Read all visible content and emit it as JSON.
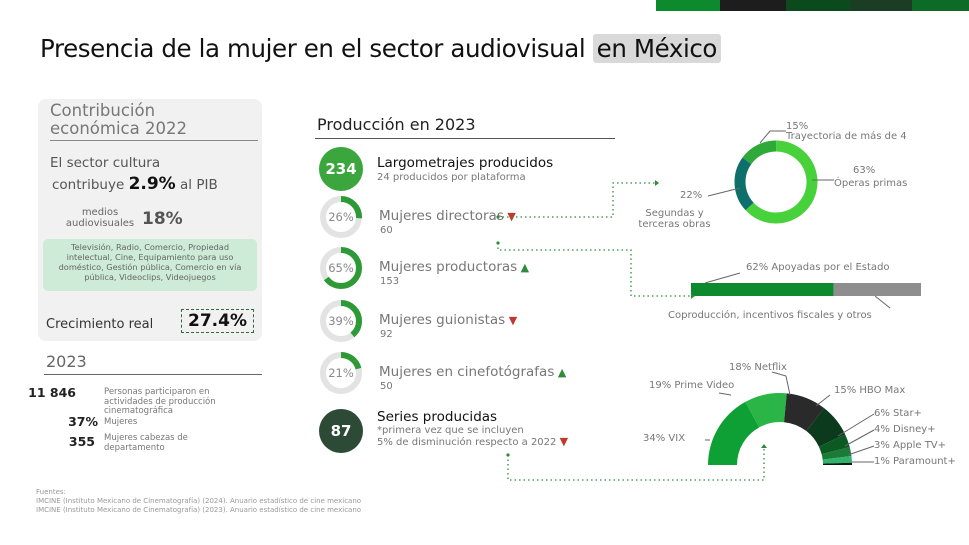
{
  "page": {
    "title_main": "Presencia de la mujer en el sector audiovisual ",
    "title_hl": "en México"
  },
  "topbar_colors": [
    "#0e8a2e",
    "#1d1d1d",
    "#0b4a1c",
    "#1a3d24",
    "#0d6b28"
  ],
  "left": {
    "card_title": "Contribución económica 2022",
    "culture_line1": "El sector cultura",
    "culture_line2_pre": "contribuye",
    "culture_value": "2.9%",
    "culture_line2_post": "al PIB",
    "medios_label": "medios audiovisuales",
    "medios_value": "18%",
    "sectors_text": "Televisión, Radio, Comercio, Propiedad intelectual, Cine, Equipamiento para uso doméstico, Gestión pública, Comercio en vía pública, Videoclips, Videojuegos",
    "growth_label": "Crecimiento real",
    "growth_value": "27.4%",
    "year_title": "2023",
    "stats": [
      {
        "value": "11 846",
        "label": "Personas participaron en actividades de producción cinematográfica"
      },
      {
        "value": "37%",
        "label": "Mujeres"
      },
      {
        "value": "355",
        "label": "Mujeres cabezas de departamento"
      }
    ]
  },
  "sources": {
    "heading": "Fuentes:",
    "line1": "IMCINE (Instituto Mexicano de Cinematografía) (2024). Anuario estadístico de cine mexicano",
    "line2": "IMCINE (Instituto Mexicano de Cinematografía) (2023). Anuario estadístico de cine mexicano"
  },
  "production": {
    "heading": "Producción en 2023",
    "largometrajes": {
      "value": "234",
      "label": "Largometrajes producidos",
      "sub": "24 producidos por plataforma"
    },
    "rows": [
      {
        "pct_label": "26%",
        "label": "Mujeres directoras",
        "sub": "60",
        "trend": "down"
      },
      {
        "pct_label": "65%",
        "label": "Mujeres productoras",
        "sub": "153",
        "trend": "up"
      },
      {
        "pct_label": "39%",
        "label": "Mujeres guionistas",
        "sub": "92",
        "trend": "down"
      },
      {
        "pct_label": "21%",
        "label": "Mujeres en cinefotógrafas",
        "sub": "50",
        "trend": "up"
      }
    ],
    "series": {
      "value": "87",
      "label": "Series producidas",
      "sub1": "*primera vez que se incluyen",
      "sub2": "5% de disminución respecto a 2022"
    }
  },
  "chart_data": [
    {
      "type": "progress",
      "series": [
        {
          "name": "Mujeres directoras",
          "value": 26
        },
        {
          "name": "Mujeres productoras",
          "value": 65
        },
        {
          "name": "Mujeres guionistas",
          "value": 39
        },
        {
          "name": "Mujeres en cinefotógrafas",
          "value": 21
        }
      ],
      "colors": {
        "fill": "#2e9a37",
        "track": "#e3e3e3"
      }
    },
    {
      "type": "pie",
      "variant": "donut",
      "slices": [
        {
          "label": "Óperas primas",
          "value": 63,
          "value_label": "63%",
          "color": "#47d13b"
        },
        {
          "label": "Segundas y terceras obras",
          "value": 22,
          "value_label": "22%",
          "color": "#0f6f6a"
        },
        {
          "label": "Trayectoria de más de 4",
          "value": 15,
          "value_label": "15%",
          "color": "#2faa3a"
        }
      ]
    },
    {
      "type": "bar",
      "variant": "stacked-horizontal",
      "segments": [
        {
          "label": "Apoyadas por el Estado",
          "value": 62,
          "value_label": "62%",
          "color": "#0e8a2e"
        },
        {
          "label": "Coproducción, incentivos fiscales y otros",
          "value": 38,
          "color": "#8e8e8e"
        }
      ]
    },
    {
      "type": "pie",
      "variant": "semi-donut",
      "slices": [
        {
          "label": "VIX",
          "value": 34,
          "value_label": "34%",
          "color": "#0fa035"
        },
        {
          "label": "Prime Video",
          "value": 19,
          "value_label": "19%",
          "color": "#2bb546"
        },
        {
          "label": "Netflix",
          "value": 18,
          "value_label": "18%",
          "color": "#2a2a2a"
        },
        {
          "label": "HBO Max",
          "value": 15,
          "value_label": "15%",
          "color": "#0b3b1c"
        },
        {
          "label": "Star+",
          "value": 6,
          "value_label": "6%",
          "color": "#0b5a24"
        },
        {
          "label": "Disney+",
          "value": 4,
          "value_label": "4%",
          "color": "#1b7a37"
        },
        {
          "label": "Apple TV+",
          "value": 3,
          "value_label": "3%",
          "color": "#2eb56a"
        },
        {
          "label": "Paramount+",
          "value": 1,
          "value_label": "1%",
          "color": "#0a1d0f"
        }
      ]
    }
  ]
}
